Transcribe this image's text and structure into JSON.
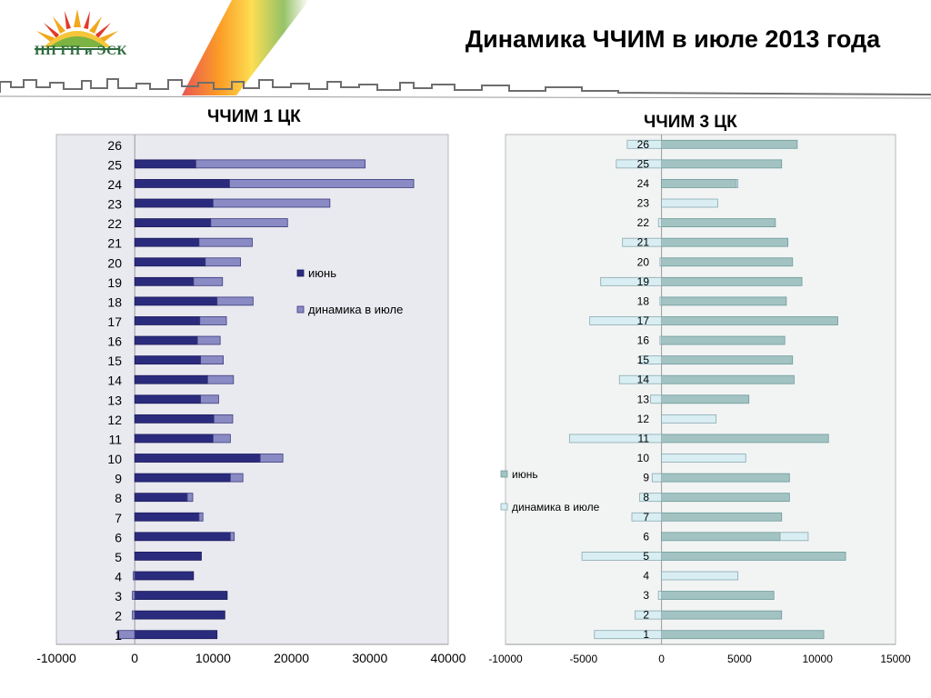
{
  "header": {
    "logo_text": "НП ГП и ЭСК",
    "title": "Динамика ЧЧИМ в июле 2013 года"
  },
  "colors": {
    "june_1": "#2b2b7e",
    "dyn_1": "#8a8ac4",
    "plot_bg_1": "#e9e9f0",
    "june_3": "#a3c3c3",
    "dyn_3": "#d8eef2",
    "plot_bg_3": "#f2f4f4"
  },
  "chart_data": [
    {
      "type": "bar",
      "orientation": "horizontal",
      "stacked": true,
      "title": "ЧЧИМ 1 ЦК",
      "categories": [
        "1",
        "2",
        "3",
        "4",
        "5",
        "6",
        "7",
        "8",
        "9",
        "10",
        "11",
        "12",
        "13",
        "14",
        "15",
        "16",
        "17",
        "18",
        "19",
        "20",
        "21",
        "22",
        "23",
        "24",
        "25",
        "26"
      ],
      "series": [
        {
          "name": "июнь",
          "values": [
            10500,
            11500,
            11800,
            7500,
            8500,
            12200,
            8200,
            6700,
            12200,
            16000,
            10000,
            10100,
            8400,
            9300,
            8400,
            8000,
            8300,
            10500,
            7500,
            9000,
            8200,
            9700,
            10000,
            12100,
            7800,
            0
          ]
        },
        {
          "name": "динамика в июле",
          "values": [
            -2200,
            -300,
            -300,
            -200,
            0,
            500,
            500,
            700,
            1600,
            2900,
            2200,
            2400,
            2300,
            3300,
            2900,
            2900,
            3400,
            4600,
            3700,
            4500,
            6800,
            9800,
            14900,
            23500,
            21600,
            0
          ]
        }
      ],
      "xlim": [
        -10000,
        40000
      ],
      "xticks": [
        "-10000",
        "0",
        "10000",
        "20000",
        "30000",
        "40000"
      ],
      "grid": false,
      "legend": "right"
    },
    {
      "type": "bar",
      "orientation": "horizontal",
      "stacked": true,
      "title": "ЧЧИМ 3 ЦК",
      "categories": [
        "1",
        "2",
        "3",
        "4",
        "5",
        "6",
        "7",
        "8",
        "9",
        "10",
        "11",
        "12",
        "13",
        "14",
        "15",
        "16",
        "17",
        "18",
        "19",
        "20",
        "21",
        "22",
        "23",
        "24",
        "25",
        "26"
      ],
      "series": [
        {
          "name": "июнь",
          "values": [
            10400,
            7700,
            7200,
            0,
            11800,
            7600,
            7700,
            8200,
            8200,
            0,
            10700,
            0,
            5600,
            8500,
            8400,
            7900,
            11300,
            8000,
            9000,
            8400,
            8100,
            7300,
            0,
            4800,
            7700,
            8700
          ]
        },
        {
          "name": "динамика в июле",
          "values": [
            -4300,
            -1700,
            -200,
            4900,
            -5100,
            1800,
            -1900,
            -1400,
            -600,
            5400,
            -5900,
            3500,
            -700,
            -2700,
            -1400,
            -100,
            -4600,
            -100,
            -3900,
            -100,
            -2500,
            -200,
            3600,
            100,
            -2900,
            -2200
          ]
        }
      ],
      "xlim": [
        -10000,
        15000
      ],
      "xticks": [
        "-10000",
        "-5000",
        "0",
        "5000",
        "10000",
        "15000"
      ],
      "grid": false,
      "legend": "left"
    }
  ]
}
